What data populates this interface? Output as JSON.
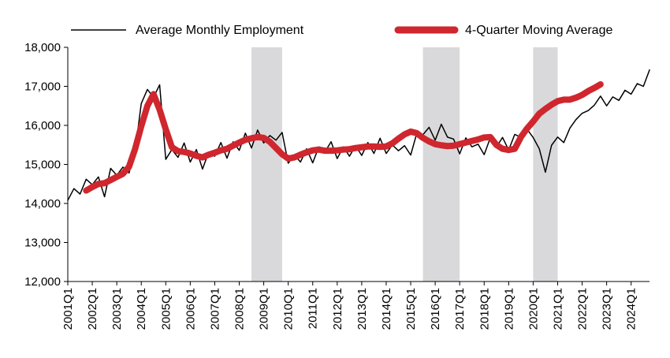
{
  "chart_data": {
    "type": "line",
    "title": "",
    "xlabel": "",
    "ylabel": "",
    "ylim": [
      12000,
      18000
    ],
    "yticks": [
      12000,
      13000,
      14000,
      15000,
      16000,
      17000,
      18000
    ],
    "ytick_labels": [
      "12,000",
      "13,000",
      "14,000",
      "15,000",
      "16,000",
      "17,000",
      "18,000"
    ],
    "xtick_labels": [
      "2001Q1",
      "2002Q1",
      "2003Q1",
      "2004Q1",
      "2005Q1",
      "2006Q1",
      "2007Q1",
      "2008Q1",
      "2009Q1",
      "2010Q1",
      "2011Q1",
      "2012Q1",
      "2013Q1",
      "2014Q1",
      "2015Q1",
      "2016Q1",
      "2017Q1",
      "2018Q1",
      "2019Q1",
      "2020Q1",
      "2021Q1",
      "2022Q1",
      "2023Q1",
      "2024Q1"
    ],
    "x_start": "2001Q1",
    "x_end": "2024Q4",
    "legend_position": "top",
    "grid": false,
    "shaded_periods": [
      {
        "start": "2008Q3",
        "end": "2009Q4"
      },
      {
        "start": "2015Q3",
        "end": "2017Q1"
      },
      {
        "start": "2020Q1",
        "end": "2021Q1"
      }
    ],
    "colors": {
      "monthly": "#000000",
      "moving_avg": "#d0262e",
      "shade": "#d9d9db"
    },
    "series": [
      {
        "name": "Average Monthly Employment",
        "start": "2001Q1",
        "values": [
          14080,
          14380,
          14240,
          14620,
          14480,
          14680,
          14170,
          14900,
          14720,
          14930,
          14780,
          15350,
          16560,
          16920,
          16720,
          17040,
          15130,
          15380,
          15180,
          15550,
          15060,
          15380,
          14880,
          15310,
          15210,
          15560,
          15160,
          15580,
          15360,
          15800,
          15420,
          15880,
          15550,
          15740,
          15620,
          15820,
          15030,
          15250,
          15060,
          15400,
          15040,
          15450,
          15320,
          15580,
          15150,
          15450,
          15210,
          15480,
          15230,
          15560,
          15280,
          15670,
          15280,
          15500,
          15350,
          15480,
          15240,
          15800,
          15760,
          15950,
          15620,
          16030,
          15700,
          15650,
          15270,
          15680,
          15450,
          15520,
          15250,
          15680,
          15450,
          15690,
          15370,
          15770,
          15690,
          15900,
          15690,
          15400,
          14800,
          15490,
          15700,
          15560,
          15930,
          16150,
          16310,
          16380,
          16520,
          16750,
          16500,
          16730,
          16640,
          16900,
          16800,
          17070,
          17000,
          17420
        ]
      },
      {
        "name": "4-Quarter Moving Average",
        "start": "2001Q4",
        "values": [
          14330,
          14420,
          14500,
          14520,
          14600,
          14680,
          14760,
          14940,
          15400,
          15980,
          16500,
          16800,
          16400,
          15900,
          15440,
          15340,
          15320,
          15280,
          15220,
          15180,
          15250,
          15300,
          15360,
          15400,
          15480,
          15560,
          15630,
          15670,
          15700,
          15680,
          15580,
          15420,
          15260,
          15150,
          15180,
          15250,
          15310,
          15360,
          15380,
          15350,
          15350,
          15360,
          15380,
          15390,
          15420,
          15440,
          15460,
          15460,
          15450,
          15460,
          15540,
          15660,
          15770,
          15840,
          15800,
          15680,
          15590,
          15520,
          15490,
          15470,
          15480,
          15520,
          15560,
          15600,
          15640,
          15690,
          15700,
          15500,
          15400,
          15370,
          15400,
          15700,
          15920,
          16100,
          16300,
          16420,
          16530,
          16620,
          16660,
          16660,
          16710,
          16780,
          16880,
          16960,
          17050
        ]
      }
    ]
  }
}
